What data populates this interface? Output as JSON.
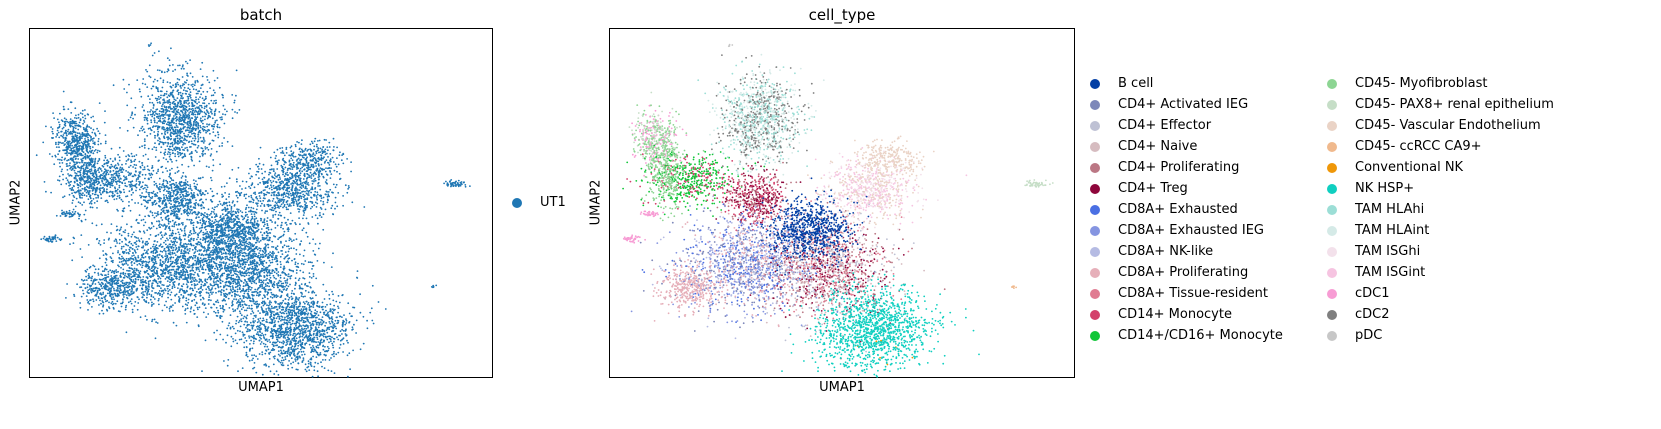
{
  "chart_data": [
    {
      "type": "scatter",
      "title": "batch",
      "xlabel": "UMAP1",
      "ylabel": "UMAP2",
      "grid": false,
      "ticks": false,
      "legend_position": "right",
      "series": [
        {
          "name": "UT1",
          "color": "#1f77b4"
        }
      ]
    },
    {
      "type": "scatter",
      "title": "cell_type",
      "xlabel": "UMAP1",
      "ylabel": "UMAP2",
      "grid": false,
      "ticks": false,
      "legend_position": "right",
      "legend_columns": 2,
      "series": [
        {
          "name": "B cell",
          "color": "#023fa5"
        },
        {
          "name": "CD4+ Activated IEG",
          "color": "#7d87b9"
        },
        {
          "name": "CD4+ Effector",
          "color": "#bec1d4"
        },
        {
          "name": "CD4+ Naive",
          "color": "#d6bcc0"
        },
        {
          "name": "CD4+ Proliferating",
          "color": "#bb7784"
        },
        {
          "name": "CD4+ Treg",
          "color": "#8e063b"
        },
        {
          "name": "CD8A+ Exhausted",
          "color": "#4a6fe3"
        },
        {
          "name": "CD8A+ Exhausted IEG",
          "color": "#8595e1"
        },
        {
          "name": "CD8A+ NK-like",
          "color": "#b5bbe3"
        },
        {
          "name": "CD8A+ Proliferating",
          "color": "#e6afb9"
        },
        {
          "name": "CD8A+ Tissue-resident",
          "color": "#e07b91"
        },
        {
          "name": "CD14+ Monocyte",
          "color": "#d33f6a"
        },
        {
          "name": "CD14+/CD16+ Monocyte",
          "color": "#11c638"
        },
        {
          "name": "CD45- Myofibroblast",
          "color": "#8dd593"
        },
        {
          "name": "CD45- PAX8+ renal epithelium",
          "color": "#c6dec7"
        },
        {
          "name": "CD45- Vascular Endothelium",
          "color": "#ead3c6"
        },
        {
          "name": "CD45- ccRCC CA9+",
          "color": "#f0b98d"
        },
        {
          "name": "Conventional NK",
          "color": "#ef9708"
        },
        {
          "name": "NK HSP+",
          "color": "#0fcfc0"
        },
        {
          "name": "TAM HLAhi",
          "color": "#9cded6"
        },
        {
          "name": "TAM HLAint",
          "color": "#d5eae7"
        },
        {
          "name": "TAM ISGhi",
          "color": "#f3e1eb"
        },
        {
          "name": "TAM ISGint",
          "color": "#f6c4e1"
        },
        {
          "name": "cDC1",
          "color": "#f79cd4"
        },
        {
          "name": "cDC2",
          "color": "#7f7f7f"
        },
        {
          "name": "pDC",
          "color": "#c7c7c7"
        }
      ]
    }
  ]
}
